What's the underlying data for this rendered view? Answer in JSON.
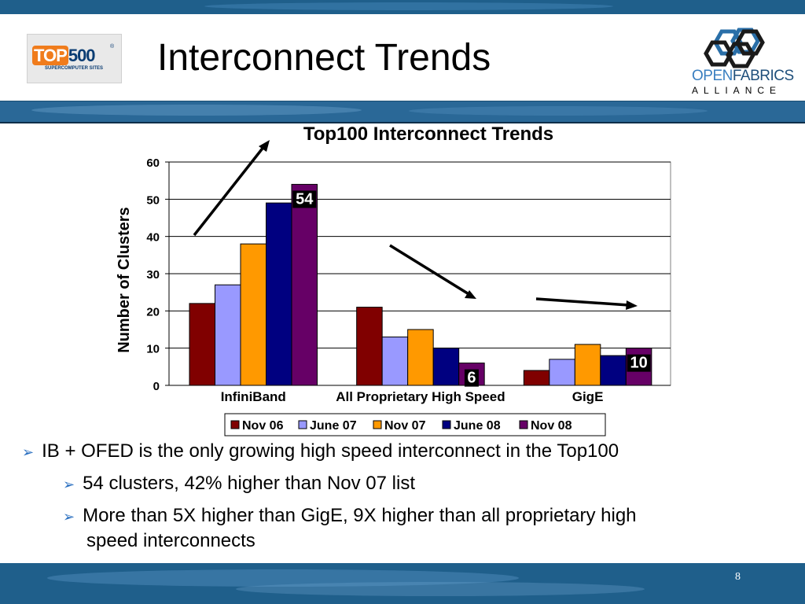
{
  "slide": {
    "title": "Interconnect Trends",
    "page_number": "8",
    "logo_top500": {
      "main_a": "TOP",
      "main_b": "500",
      "sub": "SUPERCOMPUTER SITES",
      "reg": "®"
    },
    "logo_ofa": {
      "line1_a": "OPEN",
      "line1_b": "FABRICS",
      "line2": "ALLIANCE"
    }
  },
  "chart_data": {
    "type": "bar",
    "title": "Top100 Interconnect Trends",
    "ylabel": "Number of Clusters",
    "xlabel": "",
    "categories": [
      "InfiniBand",
      "All Proprietary High Speed",
      "GigE"
    ],
    "series": [
      {
        "name": "Nov 06",
        "values": [
          22,
          21,
          4
        ],
        "color": "#800000"
      },
      {
        "name": "June 07",
        "values": [
          27,
          13,
          7
        ],
        "color": "#9999ff"
      },
      {
        "name": "Nov 07",
        "values": [
          38,
          15,
          11
        ],
        "color": "#ff9900"
      },
      {
        "name": "June 08",
        "values": [
          49,
          10,
          8
        ],
        "color": "#000080"
      },
      {
        "name": "Nov 08",
        "values": [
          54,
          6,
          10
        ],
        "color": "#660066"
      }
    ],
    "ylim": [
      0,
      60
    ],
    "yticks": [
      0,
      10,
      20,
      30,
      40,
      50,
      60
    ],
    "grid": true,
    "legend": "bottom",
    "data_labels": [
      {
        "series": 4,
        "category": 0,
        "text": "54"
      },
      {
        "series": 4,
        "category": 1,
        "text": "6"
      },
      {
        "series": 4,
        "category": 2,
        "text": "10"
      }
    ]
  },
  "bullets": [
    {
      "level": 1,
      "text": "IB + OFED is the only growing high speed interconnect in the Top100"
    },
    {
      "level": 2,
      "text": "54 clusters, 42% higher than Nov 07 list"
    },
    {
      "level": 2,
      "text": "More than 5X higher than GigE, 9X higher than all proprietary high"
    },
    {
      "level": 2,
      "text": "speed interconnects"
    }
  ]
}
